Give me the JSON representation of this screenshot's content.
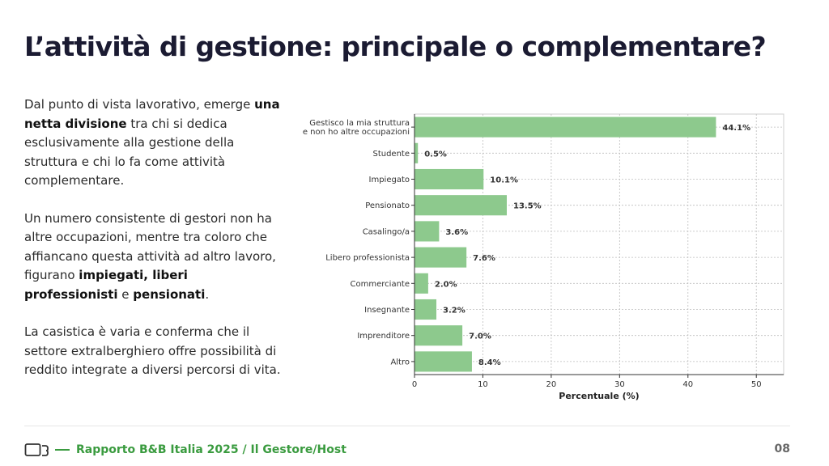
{
  "title": "L’attività di gestione: principale o complementare?",
  "paragraphs": [
    [
      {
        "text": "Dal punto di vista lavorativo, emerge "
      },
      {
        "text": "una netta divisione",
        "bold": true
      },
      {
        "text": " tra chi si dedica esclusivamente alla gestione della struttura e chi lo fa come attività complementare."
      }
    ],
    [
      {
        "text": "Un numero consistente di gestori non ha altre occupazioni, mentre tra coloro che affiancano questa attività ad altro lavoro, figurano "
      },
      {
        "text": "impiegati, liberi professionisti",
        "bold": true
      },
      {
        "text": " e "
      },
      {
        "text": "pensionati",
        "bold": true
      },
      {
        "text": "."
      }
    ],
    [
      {
        "text": "La casistica è varia e conferma che il settore extralberghiero offre possibilità di reddito integrate a diversi percorsi di vita."
      }
    ]
  ],
  "chart_data": {
    "type": "bar",
    "orientation": "horizontal",
    "categories": [
      [
        "Gestisco la mia struttura",
        "e non ho altre occupazioni"
      ],
      [
        "Studente"
      ],
      [
        "Impiegato"
      ],
      [
        "Pensionato"
      ],
      [
        "Casalingo/a"
      ],
      [
        "Libero professionista"
      ],
      [
        "Commerciante"
      ],
      [
        "Insegnante"
      ],
      [
        "Imprenditore"
      ],
      [
        "Altro"
      ]
    ],
    "values": [
      44.1,
      0.5,
      10.1,
      13.5,
      3.6,
      7.6,
      2.0,
      3.2,
      7.0,
      8.4
    ],
    "value_labels": [
      "44.1%",
      "0.5%",
      "10.1%",
      "13.5%",
      "3.6%",
      "7.6%",
      "2.0%",
      "3.2%",
      "7.0%",
      "8.4%"
    ],
    "xlabel": "Percentuale (%)",
    "xlim": [
      0,
      54
    ],
    "xticks": [
      0,
      10,
      20,
      30,
      40,
      50
    ],
    "grid": true,
    "bar_color": "#8dc98d"
  },
  "footer": {
    "icon": "bed-icon",
    "text": "Rapporto B&B Italia 2025 / Il Gestore/Host",
    "page": "08"
  }
}
